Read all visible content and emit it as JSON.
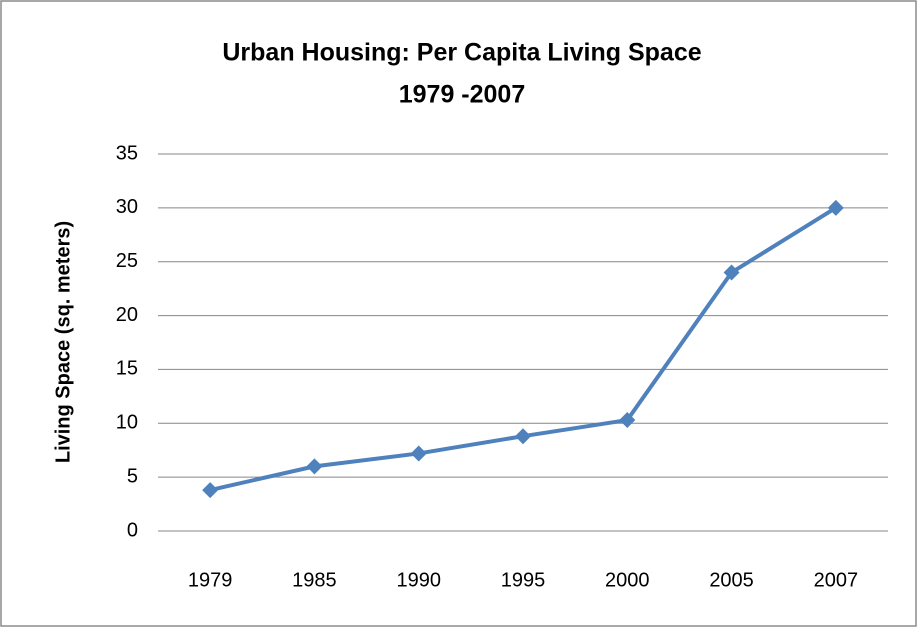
{
  "chart_data": {
    "type": "line",
    "title": "Urban Housing: Per Capita Living Space",
    "subtitle": "1979 -2007",
    "y_label": "Living Space (sq. meters)",
    "categories": [
      "1979",
      "1985",
      "1990",
      "1995",
      "2000",
      "2005",
      "2007"
    ],
    "values": [
      3.8,
      6,
      7.2,
      8.8,
      10.3,
      24,
      30
    ],
    "color": "#4f81bd",
    "ylim": [
      0,
      35
    ],
    "yticks": [
      0,
      5,
      10,
      15,
      20,
      25,
      30,
      35
    ],
    "grid": true
  }
}
